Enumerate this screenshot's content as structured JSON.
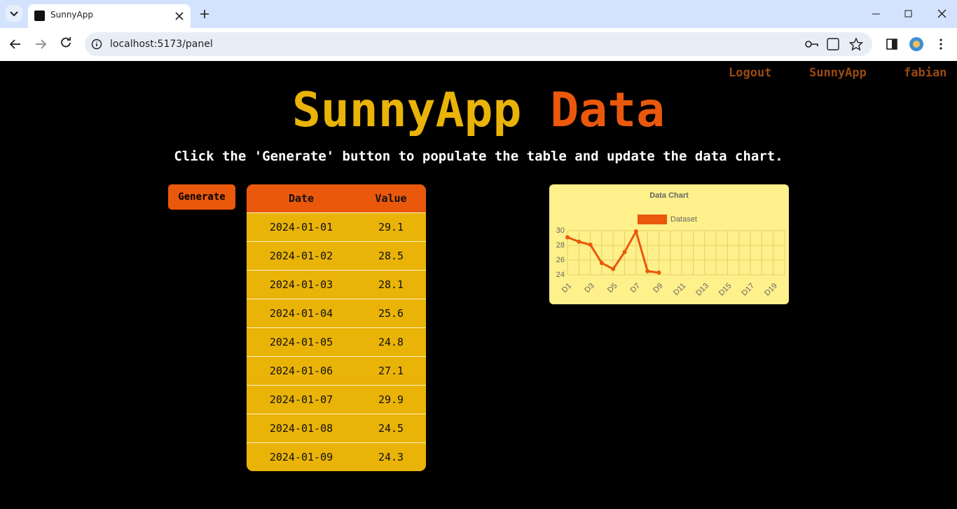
{
  "browser": {
    "tab_title": "SunnyApp",
    "url": "localhost:5173/panel"
  },
  "nav": [
    "Logout",
    "SunnyApp",
    "fabian"
  ],
  "header": {
    "title_part1": "SunnyApp",
    "title_part2": "Data",
    "instruction": "Click the 'Generate' button to populate the table and update the data chart."
  },
  "button": "Generate",
  "table": {
    "columns": [
      "Date",
      "Value"
    ],
    "rows": [
      [
        "2024-01-01",
        "29.1"
      ],
      [
        "2024-01-02",
        "28.5"
      ],
      [
        "2024-01-03",
        "28.1"
      ],
      [
        "2024-01-04",
        "25.6"
      ],
      [
        "2024-01-05",
        "24.8"
      ],
      [
        "2024-01-06",
        "27.1"
      ],
      [
        "2024-01-07",
        "29.9"
      ],
      [
        "2024-01-08",
        "24.5"
      ],
      [
        "2024-01-09",
        "24.3"
      ]
    ]
  },
  "chart_data": {
    "type": "line",
    "title": "Data Chart",
    "categories": [
      "D1",
      null,
      "D3",
      null,
      "D5",
      null,
      "D7",
      null,
      "D9",
      null,
      "D11",
      null,
      "D13",
      null,
      "D15",
      null,
      "D17",
      null,
      "D19",
      null
    ],
    "series": [
      {
        "name": "Dataset",
        "color": "#ea580c",
        "values": [
          29.1,
          28.5,
          28.1,
          25.6,
          24.8,
          27.1,
          29.9,
          24.5,
          24.3,
          null,
          null,
          null,
          null,
          null,
          null,
          null,
          null,
          null,
          null,
          null
        ]
      }
    ],
    "ylim": [
      24,
      30
    ],
    "yticks": [
      24,
      26,
      28,
      30
    ],
    "grid": true,
    "legend": "top"
  }
}
